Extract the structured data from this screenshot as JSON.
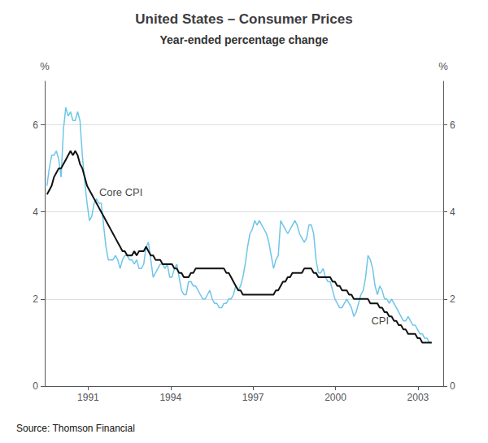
{
  "chart_data": {
    "type": "line",
    "title": "United States – Consumer Prices",
    "subtitle": "Year-ended percentage change",
    "source": "Source: Thomson Financial",
    "x": [
      1989.5,
      1989.5859,
      1989.6718,
      1989.7577,
      1989.8436,
      1989.9294,
      1990.0153,
      1990.1012,
      1990.1871,
      1990.273,
      1990.3589,
      1990.4448,
      1990.5307,
      1990.6166,
      1990.7025,
      1990.7883,
      1990.8742,
      1990.9601,
      1991.046,
      1991.1319,
      1991.2178,
      1991.3037,
      1991.3896,
      1991.4755,
      1991.5613,
      1991.6472,
      1991.7331,
      1991.819,
      1991.9049,
      1991.9908,
      1992.0767,
      1992.1626,
      1992.2485,
      1992.3344,
      1992.4202,
      1992.5061,
      1992.592,
      1992.6779,
      1992.7638,
      1992.8497,
      1992.9356,
      1993.0215,
      1993.1074,
      1993.1933,
      1993.2791,
      1993.365,
      1993.4509,
      1993.5368,
      1993.6227,
      1993.7086,
      1993.7945,
      1993.8804,
      1993.9663,
      1994.0521,
      1994.138,
      1994.2239,
      1994.3098,
      1994.3957,
      1994.4816,
      1994.5675,
      1994.6534,
      1994.7393,
      1994.8252,
      1994.911,
      1994.9969,
      1995.0828,
      1995.1687,
      1995.2546,
      1995.3405,
      1995.4264,
      1995.5123,
      1995.5982,
      1995.684,
      1995.7699,
      1995.8558,
      1995.9417,
      1996.0276,
      1996.1135,
      1996.1994,
      1996.2853,
      1996.3712,
      1996.4571,
      1996.5429,
      1996.6288,
      1996.7147,
      1996.8006,
      1996.8865,
      1996.9724,
      1997.0583,
      1997.1442,
      1997.2301,
      1997.316,
      1997.4018,
      1997.4877,
      1997.5736,
      1997.6595,
      1997.7454,
      1997.8313,
      1997.9172,
      1998.0031,
      1998.089,
      1998.1748,
      1998.2607,
      1998.3466,
      1998.4325,
      1998.5184,
      1998.6043,
      1998.6902,
      1998.7761,
      1998.862,
      1998.9479,
      1999.0337,
      1999.1196,
      1999.2055,
      1999.2914,
      1999.3773,
      1999.4632,
      1999.5491,
      1999.635,
      1999.7209,
      1999.8067,
      1999.8926,
      1999.9785,
      2000.0644,
      2000.1503,
      2000.2362,
      2000.3221,
      2000.408,
      2000.4939,
      2000.5798,
      2000.6656,
      2000.7515,
      2000.8374,
      2000.9233,
      2001.0092,
      2001.0951,
      2001.181,
      2001.2669,
      2001.3528,
      2001.4387,
      2001.5245,
      2001.6104,
      2001.6963,
      2001.7822,
      2001.8681,
      2001.954,
      2002.0399,
      2002.1258,
      2002.2117,
      2002.2975,
      2002.3834,
      2002.4693,
      2002.5552,
      2002.6411,
      2002.727,
      2002.8129,
      2002.8988,
      2002.9847,
      2003.0706,
      2003.1564,
      2003.2423,
      2003.3282,
      2003.4141,
      2003.5
    ],
    "series": [
      {
        "name": "CPI",
        "color": "#6ec6e8",
        "values": [
          4.6,
          5.0,
          5.3,
          5.3,
          5.4,
          5.2,
          4.8,
          5.9,
          6.4,
          6.2,
          6.3,
          6.1,
          6.1,
          6.3,
          6.1,
          5.3,
          4.7,
          4.2,
          3.8,
          3.9,
          4.2,
          4.3,
          4.2,
          4.2,
          3.7,
          3.2,
          2.9,
          2.9,
          2.9,
          3.0,
          2.9,
          2.7,
          2.9,
          3.0,
          3.0,
          2.9,
          2.9,
          2.8,
          2.9,
          2.7,
          2.7,
          2.8,
          3.2,
          3.3,
          2.9,
          2.5,
          2.6,
          2.7,
          2.8,
          2.8,
          2.7,
          2.8,
          2.5,
          2.5,
          2.7,
          2.8,
          2.5,
          2.2,
          2.1,
          2.1,
          2.4,
          2.4,
          2.3,
          2.3,
          2.2,
          2.1,
          2.0,
          2.0,
          2.1,
          2.2,
          2.0,
          1.9,
          1.9,
          1.8,
          1.8,
          1.9,
          1.9,
          2.0,
          2.0,
          2.1,
          2.3,
          2.2,
          2.3,
          2.5,
          2.8,
          3.2,
          3.5,
          3.6,
          3.8,
          3.7,
          3.8,
          3.7,
          3.6,
          3.5,
          3.3,
          3.0,
          2.7,
          2.9,
          3.0,
          3.8,
          3.7,
          3.6,
          3.5,
          3.6,
          3.7,
          3.8,
          3.7,
          3.5,
          3.4,
          3.3,
          3.4,
          3.7,
          3.7,
          3.5,
          2.9,
          2.6,
          2.6,
          2.7,
          2.5,
          2.4,
          2.4,
          2.2,
          2.0,
          1.9,
          1.8,
          1.8,
          1.9,
          2.0,
          1.9,
          1.8,
          1.6,
          1.7,
          1.9,
          2.1,
          2.2,
          2.5,
          3.0,
          2.9,
          2.7,
          2.3,
          2.1,
          2.3,
          2.2,
          2.0,
          2.0,
          1.9,
          2.0,
          1.9,
          1.8,
          1.7,
          1.6,
          1.5,
          1.5,
          1.6,
          1.5,
          1.4,
          1.4,
          1.3,
          1.2,
          1.2,
          1.1,
          1.1,
          1.0,
          1.0
        ]
      },
      {
        "name": "Core CPI",
        "color": "#111111",
        "values": [
          4.4,
          4.5,
          4.6,
          4.8,
          4.9,
          5.0,
          5.0,
          5.1,
          5.2,
          5.3,
          5.4,
          5.3,
          5.4,
          5.3,
          5.1,
          5.0,
          4.8,
          4.6,
          4.5,
          4.4,
          4.3,
          4.2,
          4.1,
          4.0,
          3.9,
          3.8,
          3.7,
          3.6,
          3.5,
          3.4,
          3.3,
          3.2,
          3.1,
          3.1,
          3.0,
          3.0,
          3.0,
          3.1,
          3.0,
          3.1,
          3.1,
          3.1,
          3.2,
          3.1,
          3.0,
          3.0,
          2.9,
          2.9,
          2.9,
          2.8,
          2.8,
          2.8,
          2.8,
          2.8,
          2.7,
          2.7,
          2.6,
          2.6,
          2.5,
          2.5,
          2.5,
          2.6,
          2.6,
          2.7,
          2.7,
          2.7,
          2.7,
          2.7,
          2.7,
          2.7,
          2.7,
          2.7,
          2.7,
          2.7,
          2.7,
          2.7,
          2.6,
          2.6,
          2.5,
          2.4,
          2.3,
          2.2,
          2.2,
          2.1,
          2.1,
          2.1,
          2.1,
          2.1,
          2.1,
          2.1,
          2.1,
          2.1,
          2.1,
          2.1,
          2.1,
          2.1,
          2.1,
          2.2,
          2.2,
          2.3,
          2.4,
          2.4,
          2.5,
          2.5,
          2.6,
          2.6,
          2.6,
          2.6,
          2.6,
          2.7,
          2.7,
          2.7,
          2.7,
          2.6,
          2.6,
          2.5,
          2.5,
          2.5,
          2.5,
          2.5,
          2.5,
          2.4,
          2.4,
          2.3,
          2.3,
          2.2,
          2.2,
          2.2,
          2.1,
          2.1,
          2.0,
          2.0,
          2.0,
          2.0,
          2.0,
          2.0,
          2.0,
          1.9,
          1.9,
          1.9,
          1.9,
          1.8,
          1.8,
          1.7,
          1.7,
          1.6,
          1.6,
          1.5,
          1.5,
          1.4,
          1.4,
          1.3,
          1.3,
          1.2,
          1.2,
          1.2,
          1.2,
          1.1,
          1.1,
          1.0,
          1.0,
          1.0,
          1.0,
          1.0
        ]
      }
    ],
    "xlim": [
      1989.42,
      2003.92
    ],
    "xticks": [
      1991,
      1994,
      1997,
      2000,
      2003
    ],
    "ylim": [
      0,
      7
    ],
    "yticks": [
      0,
      2,
      4,
      6
    ],
    "y2lim": [
      0,
      7
    ],
    "y2ticks": [
      0,
      2,
      4,
      6
    ],
    "ylabel": "%",
    "y2label": "%",
    "grid": true,
    "annotations": [
      {
        "text": "Core CPI",
        "x": 1991.4,
        "y": 4.45
      },
      {
        "text": "CPI",
        "x": 2001.3,
        "y": 1.5
      }
    ]
  }
}
